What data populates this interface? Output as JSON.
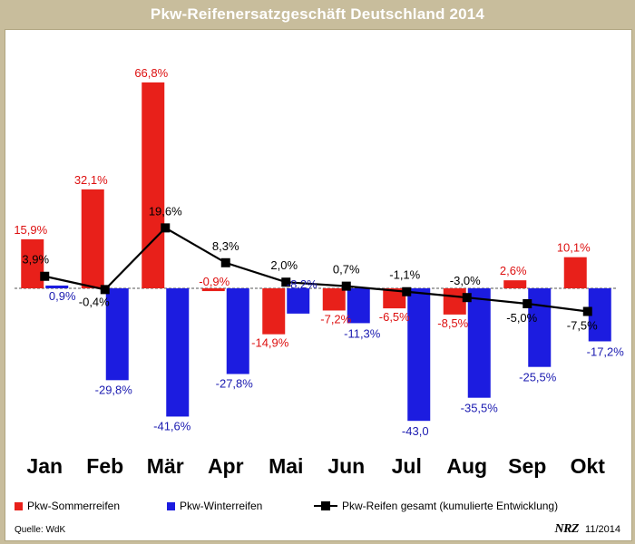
{
  "chart_data": {
    "type": "bar",
    "title": "Pkw-Reifenersatzgeschäft Deutschland 2014",
    "categories": [
      "Jan",
      "Feb",
      "Mär",
      "Apr",
      "Mai",
      "Jun",
      "Jul",
      "Aug",
      "Sep",
      "Okt"
    ],
    "series": [
      {
        "name": "Pkw-Sommerreifen",
        "kind": "bar",
        "color": "#e8201a",
        "label_color": "#dd1010",
        "values": [
          15.9,
          32.1,
          66.8,
          -0.9,
          -14.9,
          -7.2,
          -6.5,
          -8.5,
          2.6,
          10.1
        ],
        "labels": [
          "15,9%",
          "32,1%",
          "66,8%",
          "-0,9%",
          "-14,9%",
          "-7,2%",
          "-6,5%",
          "-8,5%",
          "2,6%",
          "10,1%"
        ]
      },
      {
        "name": "Pkw-Winterreifen",
        "kind": "bar",
        "color": "#1c1ce0",
        "label_color": "#1a1ab0",
        "values": [
          0.9,
          -29.8,
          -41.6,
          -27.8,
          -8.2,
          -11.3,
          -43.0,
          -35.5,
          -25.5,
          -17.2
        ],
        "labels": [
          "0,9%",
          "-29,8%",
          "-41,6%",
          "-27,8%",
          "-8,2%",
          "-11,3%",
          "-43,0",
          "-35,5%",
          "-25,5%",
          "-17,2%"
        ]
      },
      {
        "name": "Pkw-Reifen gesamt (kumulierte Entwicklung)",
        "kind": "line",
        "color": "#000000",
        "label_color": "#000000",
        "values": [
          3.9,
          -0.4,
          19.6,
          8.3,
          2.0,
          0.7,
          -1.1,
          -3.0,
          -5.0,
          -7.5
        ],
        "labels": [
          "3,9%",
          "-0,4%",
          "19,6%",
          "8,3%",
          "2,0%",
          "0,7%",
          "-1,1%",
          "-3,0%",
          "-5,0%",
          "-7,5%"
        ]
      }
    ],
    "ylim": [
      -50,
      75
    ],
    "xlabel": "",
    "ylabel": "",
    "grid": false,
    "legend_position": "bottom"
  },
  "source": "Quelle: WdK",
  "brand": {
    "logo": "NRZ",
    "date": "11/2014"
  }
}
